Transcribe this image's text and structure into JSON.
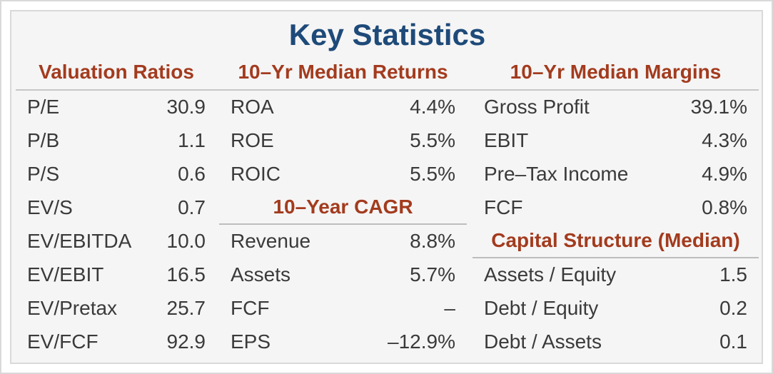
{
  "title": "Key Statistics",
  "colors": {
    "title_navy": "#1e4a79",
    "section_red": "#a33b1e",
    "body_text": "#3a3a3a",
    "card_background": "#f5f5f5",
    "border_gray": "#d9d9d9",
    "divider_gray": "#c6c6c6"
  },
  "columns": [
    {
      "header": "Valuation Ratios",
      "rows": [
        {
          "label": "P/E",
          "value": "30.9"
        },
        {
          "label": "P/B",
          "value": "1.1"
        },
        {
          "label": "P/S",
          "value": "0.6"
        },
        {
          "label": "EV/S",
          "value": "0.7"
        },
        {
          "label": "EV/EBITDA",
          "value": "10.0"
        },
        {
          "label": "EV/EBIT",
          "value": "16.5"
        },
        {
          "label": "EV/Pretax",
          "value": "25.7"
        },
        {
          "label": "EV/FCF",
          "value": "92.9"
        }
      ]
    },
    {
      "header": "10–Yr Median Returns",
      "rows": [
        {
          "label": "ROA",
          "value": "4.4%"
        },
        {
          "label": "ROE",
          "value": "5.5%"
        },
        {
          "label": "ROIC",
          "value": "5.5%"
        }
      ],
      "subheader": "10–Year CAGR",
      "rows2": [
        {
          "label": "Revenue",
          "value": "8.8%"
        },
        {
          "label": "Assets",
          "value": "5.7%"
        },
        {
          "label": "FCF",
          "value": "–"
        },
        {
          "label": "EPS",
          "value": "–12.9%"
        }
      ]
    },
    {
      "header": "10–Yr Median Margins",
      "rows": [
        {
          "label": "Gross Profit",
          "value": "39.1%"
        },
        {
          "label": "EBIT",
          "value": "4.3%"
        },
        {
          "label": "Pre–Tax Income",
          "value": "4.9%"
        },
        {
          "label": "FCF",
          "value": "0.8%"
        }
      ],
      "subheader": "Capital Structure (Median)",
      "rows2": [
        {
          "label": "Assets / Equity",
          "value": "1.5"
        },
        {
          "label": "Debt / Equity",
          "value": "0.2"
        },
        {
          "label": "Debt / Assets",
          "value": "0.1"
        }
      ]
    }
  ],
  "chart_data": {
    "type": "table",
    "title": "Key Statistics",
    "sections": [
      {
        "name": "Valuation Ratios",
        "metrics": [
          {
            "label": "P/E",
            "value": 30.9
          },
          {
            "label": "P/B",
            "value": 1.1
          },
          {
            "label": "P/S",
            "value": 0.6
          },
          {
            "label": "EV/S",
            "value": 0.7
          },
          {
            "label": "EV/EBITDA",
            "value": 10.0
          },
          {
            "label": "EV/EBIT",
            "value": 16.5
          },
          {
            "label": "EV/Pretax",
            "value": 25.7
          },
          {
            "label": "EV/FCF",
            "value": 92.9
          }
        ]
      },
      {
        "name": "10–Yr Median Returns",
        "metrics": [
          {
            "label": "ROA",
            "value": "4.4%"
          },
          {
            "label": "ROE",
            "value": "5.5%"
          },
          {
            "label": "ROIC",
            "value": "5.5%"
          }
        ]
      },
      {
        "name": "10–Year CAGR",
        "metrics": [
          {
            "label": "Revenue",
            "value": "8.8%"
          },
          {
            "label": "Assets",
            "value": "5.7%"
          },
          {
            "label": "FCF",
            "value": null
          },
          {
            "label": "EPS",
            "value": "-12.9%"
          }
        ]
      },
      {
        "name": "10–Yr Median Margins",
        "metrics": [
          {
            "label": "Gross Profit",
            "value": "39.1%"
          },
          {
            "label": "EBIT",
            "value": "4.3%"
          },
          {
            "label": "Pre-Tax Income",
            "value": "4.9%"
          },
          {
            "label": "FCF",
            "value": "0.8%"
          }
        ]
      },
      {
        "name": "Capital Structure (Median)",
        "metrics": [
          {
            "label": "Assets / Equity",
            "value": 1.5
          },
          {
            "label": "Debt / Equity",
            "value": 0.2
          },
          {
            "label": "Debt / Assets",
            "value": 0.1
          }
        ]
      }
    ]
  }
}
